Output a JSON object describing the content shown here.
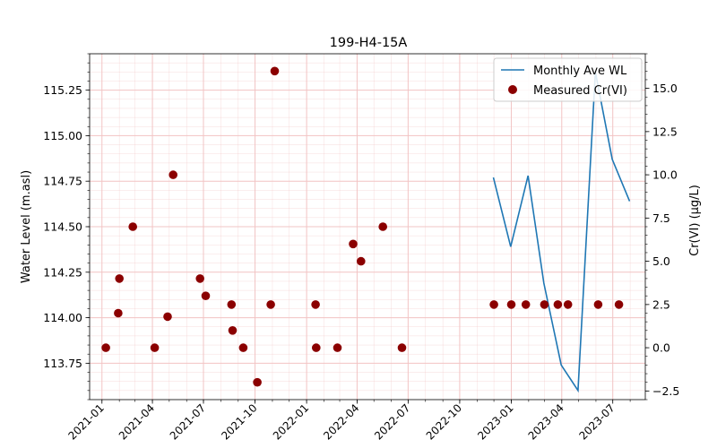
{
  "chart_data": {
    "type": "line",
    "title": "199-H4-15A",
    "xlabel": "",
    "ylabel_left": "Water Level (m.asl)",
    "ylabel_right": "Cr(VI) (µg/L)",
    "xlim": [
      "2020-12-10",
      "2023-08-28"
    ],
    "ylim_left": [
      113.55,
      115.45
    ],
    "ylim_right": [
      -3.0,
      17.0
    ],
    "x_ticks": [
      "2021-01",
      "2021-04",
      "2021-07",
      "2021-10",
      "2022-01",
      "2022-04",
      "2022-07",
      "2022-10",
      "2023-01",
      "2023-04",
      "2023-07"
    ],
    "y_ticks_left": [
      "113.75",
      "114.00",
      "114.25",
      "114.50",
      "114.75",
      "115.00",
      "115.25"
    ],
    "y_ticks_right": [
      "−2.5",
      "0.0",
      "2.5",
      "5.0",
      "7.5",
      "10.0",
      "12.5",
      "15.0"
    ],
    "grid": true,
    "legend_position": "top-right",
    "legend": [
      "Monthly Ave WL",
      "Measured Cr(VI)"
    ],
    "colors": {
      "line": "#1f77b4",
      "marker": "#8b0000",
      "grid": "#f2c4c4"
    },
    "series": [
      {
        "name": "Monthly Ave WL",
        "type": "line",
        "axis": "left",
        "x": [
          "2022-11-30",
          "2022-12-31",
          "2023-01-31",
          "2023-02-28",
          "2023-03-31",
          "2023-04-30",
          "2023-05-31",
          "2023-06-30",
          "2023-07-31"
        ],
        "y": [
          114.77,
          114.39,
          114.78,
          114.19,
          113.74,
          113.6,
          115.35,
          114.87,
          114.64
        ]
      },
      {
        "name": "Measured Cr(VI)",
        "type": "scatter",
        "axis": "right",
        "x": [
          "2021-01-08",
          "2021-01-30",
          "2021-02-01",
          "2021-02-25",
          "2021-04-05",
          "2021-04-28",
          "2021-05-08",
          "2021-06-25",
          "2021-07-05",
          "2021-08-20",
          "2021-08-22",
          "2021-09-10",
          "2021-10-05",
          "2021-10-29",
          "2021-11-05",
          "2022-01-17",
          "2022-01-18",
          "2022-02-25",
          "2022-03-25",
          "2022-04-08",
          "2022-05-17",
          "2022-06-20",
          "2022-12-01",
          "2023-01-01",
          "2023-01-27",
          "2023-03-01",
          "2023-03-25",
          "2023-04-12",
          "2023-06-05",
          "2023-07-12"
        ],
        "y": [
          0.0,
          2.0,
          4.0,
          7.0,
          0.0,
          1.8,
          10.0,
          4.0,
          3.0,
          2.5,
          1.0,
          0.0,
          -2.0,
          2.5,
          16.0,
          2.5,
          0.0,
          0.0,
          6.0,
          5.0,
          7.0,
          0.0,
          2.5,
          2.5,
          2.5,
          2.5,
          2.5,
          2.5,
          2.5,
          2.5
        ]
      }
    ]
  }
}
